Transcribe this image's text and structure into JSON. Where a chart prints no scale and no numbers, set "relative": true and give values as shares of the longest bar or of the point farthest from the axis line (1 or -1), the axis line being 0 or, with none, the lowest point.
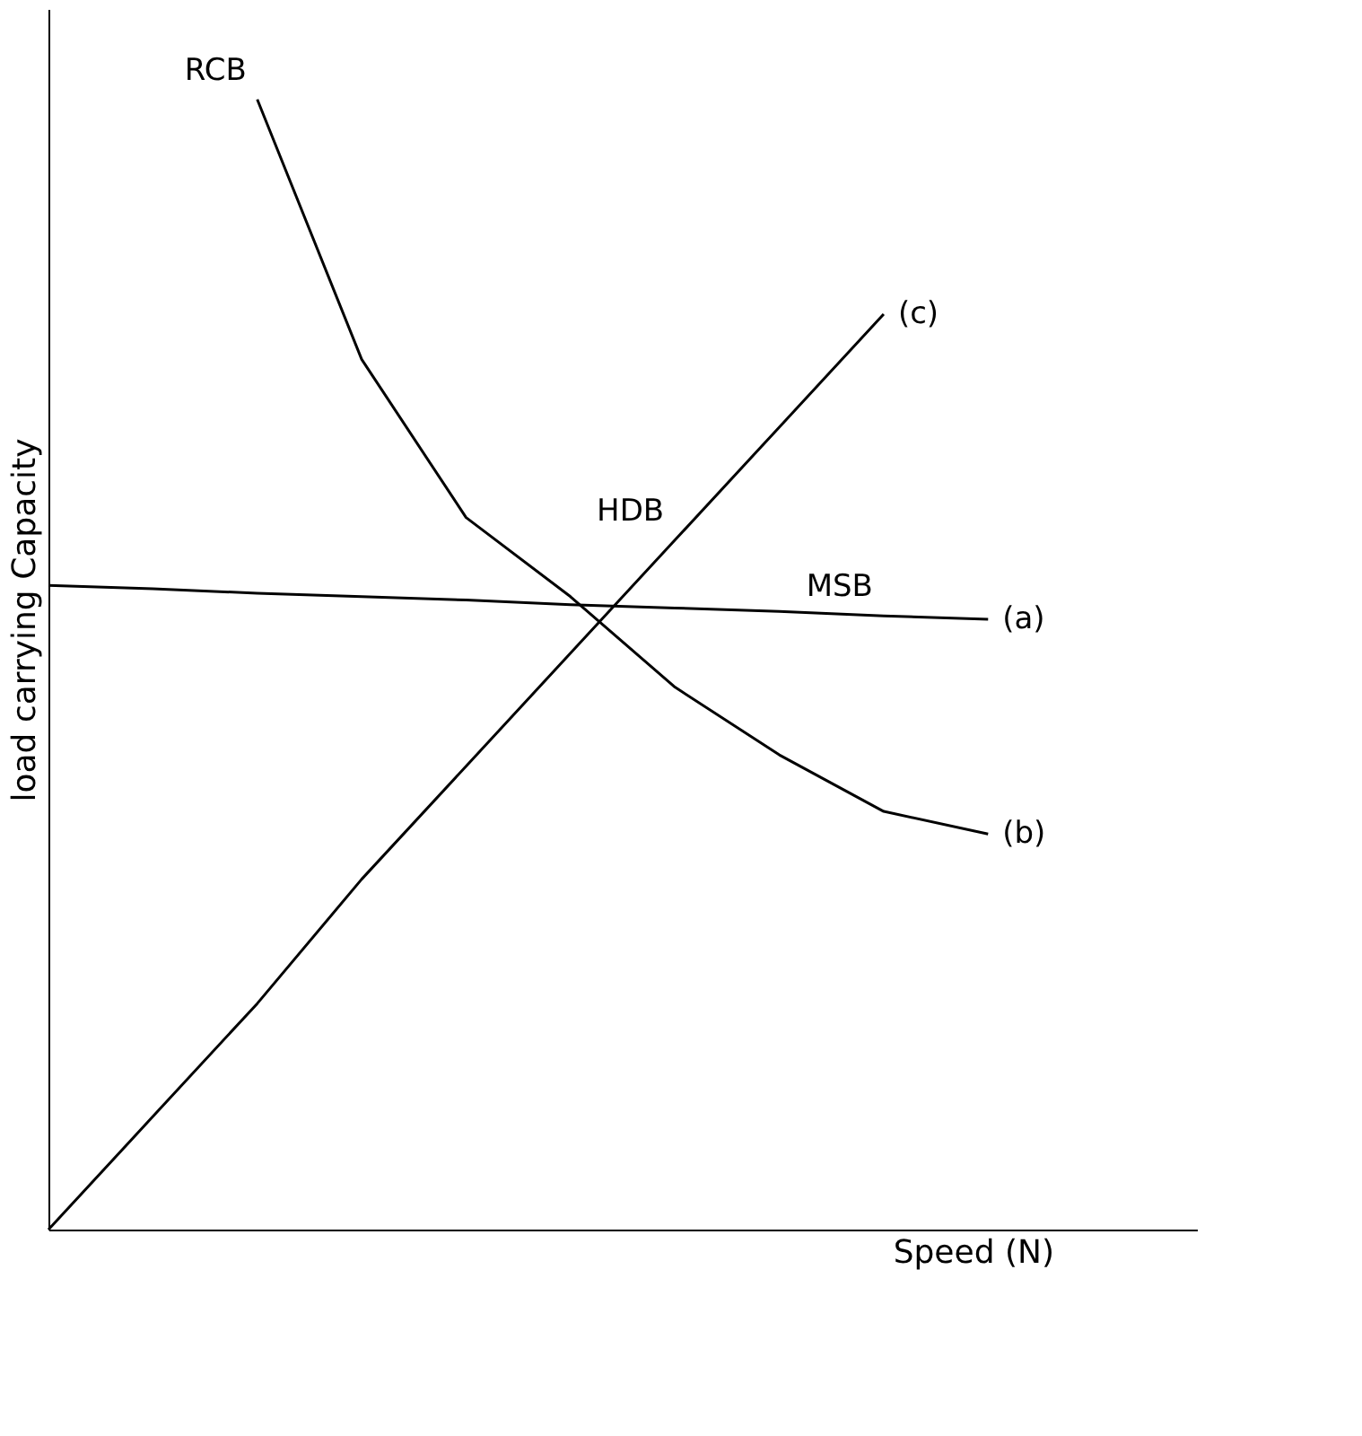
{
  "chart_data": {
    "type": "line",
    "relative": true,
    "xlabel": "Speed (N)",
    "ylabel": "load carrying Capacity",
    "categories": [
      null,
      null,
      null,
      null,
      null,
      null,
      null,
      null,
      null,
      null,
      null,
      null
    ],
    "series": [
      {
        "name": "RCB",
        "color": "#000000",
        "values": [
          null,
          null,
          1.0,
          0.77,
          0.63,
          0.56,
          0.48,
          0.42,
          0.37,
          0.35,
          null,
          null
        ]
      },
      {
        "name": "HDB",
        "color": "#000000",
        "values": [
          0,
          0.1,
          0.2,
          0.31,
          0.41,
          0.51,
          0.61,
          0.71,
          0.81,
          null,
          null,
          null
        ]
      },
      {
        "name": "MSB",
        "color": "#000000",
        "values": [
          0.57,
          0.567,
          0.563,
          0.56,
          0.557,
          0.553,
          0.55,
          0.547,
          0.543,
          0.54,
          null,
          null
        ]
      }
    ],
    "annotations": [
      "(b)",
      "(c)",
      "(a)"
    ],
    "legend": false,
    "grid": false,
    "marker": "none",
    "line_style": "solid"
  }
}
